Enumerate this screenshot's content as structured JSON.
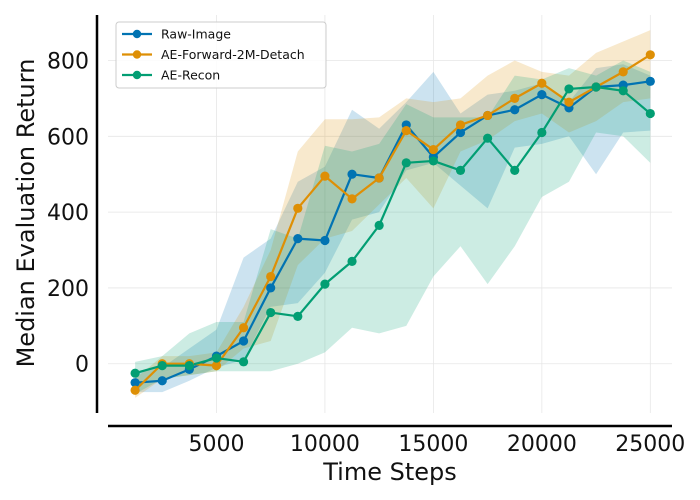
{
  "chart_data": {
    "type": "line",
    "title": "",
    "xlabel": "Time Steps",
    "ylabel": "Median Evaluation Return",
    "xlim": [
      0,
      26000
    ],
    "ylim": [
      -130,
      920
    ],
    "xticks": [
      5000,
      10000,
      15000,
      20000,
      25000
    ],
    "yticks": [
      0,
      200,
      400,
      600,
      800
    ],
    "xtick_labels": [
      "5000",
      "10000",
      "15000",
      "20000",
      "25000"
    ],
    "ytick_labels": [
      "0",
      "200",
      "400",
      "600",
      "800"
    ],
    "grid": true,
    "legend_position": "top-left",
    "x": [
      1250,
      2500,
      3750,
      5000,
      6250,
      7500,
      8750,
      10000,
      11250,
      12500,
      13750,
      15000,
      16250,
      17500,
      18750,
      20000,
      21250,
      22500,
      23750,
      25000
    ],
    "series": [
      {
        "name": "Raw-Image",
        "color": "#0173b2",
        "values": [
          -50,
          -45,
          -15,
          20,
          60,
          200,
          330,
          325,
          500,
          490,
          630,
          545,
          610,
          655,
          670,
          710,
          675,
          730,
          735,
          745
        ],
        "lower": [
          -75,
          -75,
          -45,
          -10,
          10,
          150,
          160,
          240,
          380,
          400,
          510,
          530,
          470,
          410,
          570,
          580,
          600,
          500,
          610,
          615
        ],
        "upper": [
          -20,
          -10,
          40,
          90,
          280,
          330,
          480,
          520,
          670,
          620,
          690,
          770,
          660,
          710,
          720,
          740,
          690,
          780,
          790,
          760
        ]
      },
      {
        "name": "AE-Forward-2M-Detach",
        "color": "#de8f05",
        "values": [
          -70,
          0,
          0,
          -5,
          95,
          230,
          410,
          495,
          435,
          490,
          615,
          565,
          630,
          655,
          700,
          740,
          690,
          730,
          770,
          815
        ],
        "lower": [
          -90,
          -40,
          -30,
          -20,
          40,
          60,
          260,
          330,
          350,
          420,
          490,
          410,
          560,
          590,
          640,
          660,
          610,
          640,
          690,
          700
        ],
        "upper": [
          -40,
          20,
          20,
          30,
          150,
          300,
          560,
          645,
          645,
          650,
          700,
          690,
          700,
          760,
          800,
          770,
          760,
          820,
          850,
          880
        ]
      },
      {
        "name": "AE-Recon",
        "color": "#029e73",
        "values": [
          -25,
          -5,
          -5,
          15,
          5,
          135,
          125,
          210,
          270,
          365,
          530,
          535,
          510,
          595,
          510,
          610,
          725,
          730,
          720,
          660
        ],
        "lower": [
          -80,
          -40,
          -30,
          -20,
          -20,
          -20,
          0,
          30,
          95,
          80,
          100,
          230,
          310,
          210,
          310,
          440,
          480,
          610,
          600,
          530
        ],
        "upper": [
          5,
          20,
          80,
          110,
          110,
          355,
          330,
          575,
          560,
          580,
          685,
          650,
          650,
          650,
          760,
          750,
          780,
          760,
          800,
          770
        ]
      }
    ]
  }
}
